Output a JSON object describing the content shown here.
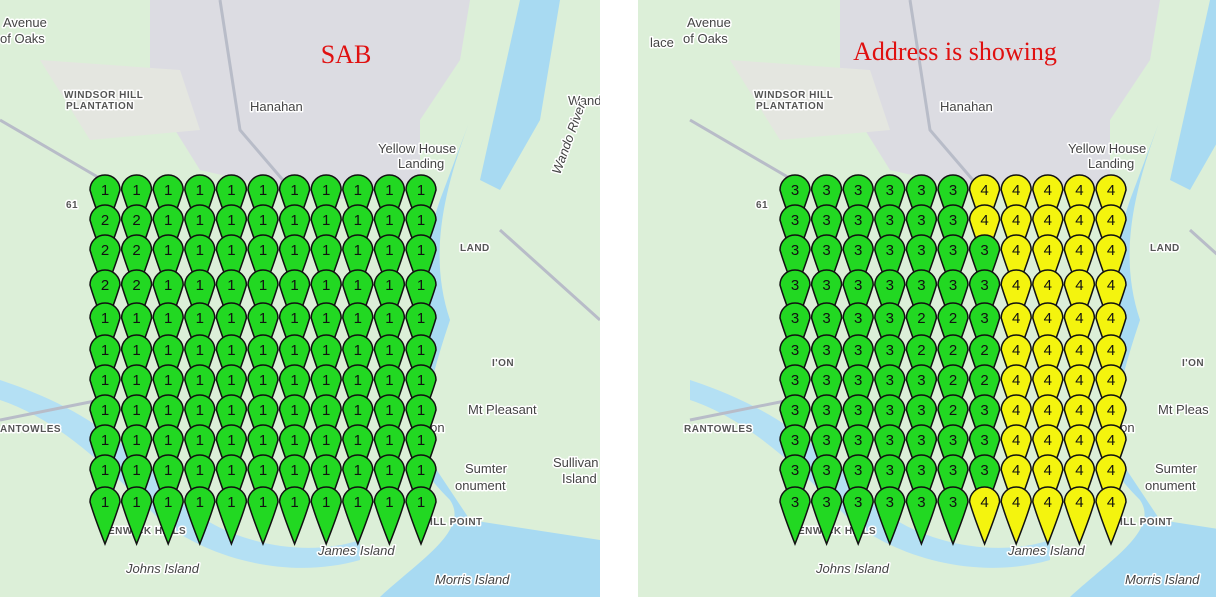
{
  "maps": [
    {
      "title": "SAB",
      "labels": [
        "Avenue",
        "of Oaks",
        "WINDSOR HILL",
        "PLANTATION",
        "Hanahan",
        "Wand",
        "Yellow House",
        "Landing",
        "Wando River",
        "LAND",
        "I'ON",
        "Mt Pleasant",
        "ANTOWLES",
        "Sumter",
        "onument",
        "Sullivan",
        "Island",
        "ston",
        "ENWICK HILLS",
        "ILL POINT",
        "James Island",
        "Johns Island",
        "Morris Island",
        "61"
      ],
      "marker_colors": {
        "1": "#22d822",
        "2": "#22d822"
      },
      "markers": [
        [
          "1",
          "1",
          "1",
          "1",
          "1",
          "1",
          "1",
          "1",
          "1",
          "1",
          "1"
        ],
        [
          "2",
          "2",
          "1",
          "1",
          "1",
          "1",
          "1",
          "1",
          "1",
          "1",
          "1"
        ],
        [
          "2",
          "2",
          "1",
          "1",
          "1",
          "1",
          "1",
          "1",
          "1",
          "1",
          "1"
        ],
        [
          "2",
          "2",
          "1",
          "1",
          "1",
          "1",
          "1",
          "1",
          "1",
          "1",
          "1"
        ],
        [
          "1",
          "1",
          "1",
          "1",
          "1",
          "1",
          "1",
          "1",
          "1",
          "1",
          "1"
        ],
        [
          "1",
          "1",
          "1",
          "1",
          "1",
          "1",
          "1",
          "1",
          "1",
          "1",
          "1"
        ],
        [
          "1",
          "1",
          "1",
          "1",
          "1",
          "1",
          "1",
          "1",
          "1",
          "1",
          "1"
        ],
        [
          "1",
          "1",
          "1",
          "1",
          "1",
          "1",
          "1",
          "1",
          "1",
          "1",
          "1"
        ],
        [
          "1",
          "1",
          "1",
          "1",
          "1",
          "1",
          "1",
          "1",
          "1",
          "1",
          "1"
        ],
        [
          "1",
          "1",
          "1",
          "1",
          "1",
          "1",
          "1",
          "1",
          "1",
          "1",
          "1"
        ],
        [
          "1",
          "1",
          "1",
          "1",
          "1",
          "1",
          "1",
          "1",
          "1",
          "1",
          "1"
        ]
      ]
    },
    {
      "title": "Address is showing",
      "labels": [
        "Avenue",
        "of Oaks",
        "WINDSOR HILL",
        "PLANTATION",
        "Hanahan",
        "lace",
        "Yellow House",
        "Landing",
        "LAND",
        "I'ON",
        "Mt Pleas",
        "RANTOWLES",
        "Sumter",
        "onument",
        "ston",
        "ENWICK HILLS",
        "ILL POINT",
        "James Island",
        "Johns Island",
        "Morris Island",
        "61"
      ],
      "marker_colors": {
        "2": "#22d822",
        "3": "#22d822",
        "4": "#f4f40e"
      },
      "markers": [
        [
          "3",
          "3",
          "3",
          "3",
          "3",
          "3",
          "4",
          "4",
          "4",
          "4",
          "4"
        ],
        [
          "3",
          "3",
          "3",
          "3",
          "3",
          "3",
          "4",
          "4",
          "4",
          "4",
          "4"
        ],
        [
          "3",
          "3",
          "3",
          "3",
          "3",
          "3",
          "3",
          "4",
          "4",
          "4",
          "4"
        ],
        [
          "3",
          "3",
          "3",
          "3",
          "3",
          "3",
          "3",
          "4",
          "4",
          "4",
          "4"
        ],
        [
          "3",
          "3",
          "3",
          "3",
          "2",
          "2",
          "3",
          "4",
          "4",
          "4",
          "4"
        ],
        [
          "3",
          "3",
          "3",
          "3",
          "2",
          "2",
          "2",
          "4",
          "4",
          "4",
          "4"
        ],
        [
          "3",
          "3",
          "3",
          "3",
          "3",
          "2",
          "2",
          "4",
          "4",
          "4",
          "4"
        ],
        [
          "3",
          "3",
          "3",
          "3",
          "3",
          "2",
          "3",
          "4",
          "4",
          "4",
          "4"
        ],
        [
          "3",
          "3",
          "3",
          "3",
          "3",
          "3",
          "3",
          "4",
          "4",
          "4",
          "4"
        ],
        [
          "3",
          "3",
          "3",
          "3",
          "3",
          "3",
          "3",
          "4",
          "4",
          "4",
          "4"
        ],
        [
          "3",
          "3",
          "3",
          "3",
          "3",
          "3",
          "4",
          "4",
          "4",
          "4",
          "4"
        ]
      ]
    }
  ]
}
